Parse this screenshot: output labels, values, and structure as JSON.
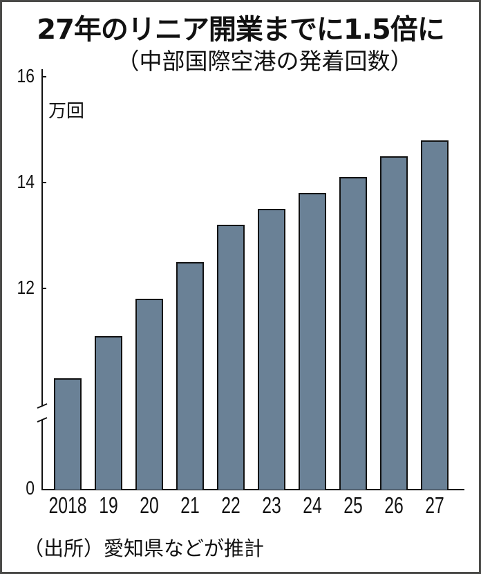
{
  "title": "27年のリニア開業までに1.5倍に",
  "subtitle": "（中部国際空港の発着回数）",
  "unit": "万回",
  "source": "（出所）愛知県などが推計",
  "colors": {
    "bar": "#6a8196",
    "outline": "#111111",
    "frame": "#4a4a48"
  },
  "y_ticks": [
    {
      "label": "16",
      "value": 16
    },
    {
      "label": "14",
      "value": 14
    },
    {
      "label": "12",
      "value": 12
    },
    {
      "label": "0",
      "value": 0
    }
  ],
  "chart_data": {
    "type": "bar",
    "title": "27年のリニア開業までに1.5倍に",
    "subtitle": "（中部国際空港の発着回数）",
    "xlabel": "",
    "ylabel": "万回",
    "categories": [
      "2018",
      "19",
      "20",
      "21",
      "22",
      "23",
      "24",
      "25",
      "26",
      "27"
    ],
    "values": [
      10.3,
      11.1,
      11.8,
      12.5,
      13.2,
      13.5,
      13.8,
      14.1,
      14.5,
      14.8
    ],
    "y_tick_labels": [
      "0",
      "12",
      "14",
      "16"
    ],
    "ylim": [
      0,
      16
    ],
    "axis_break": "between 0 and ~10 (broken y-axis)",
    "grid": false,
    "legend": null,
    "source": "（出所）愛知県などが推計"
  }
}
